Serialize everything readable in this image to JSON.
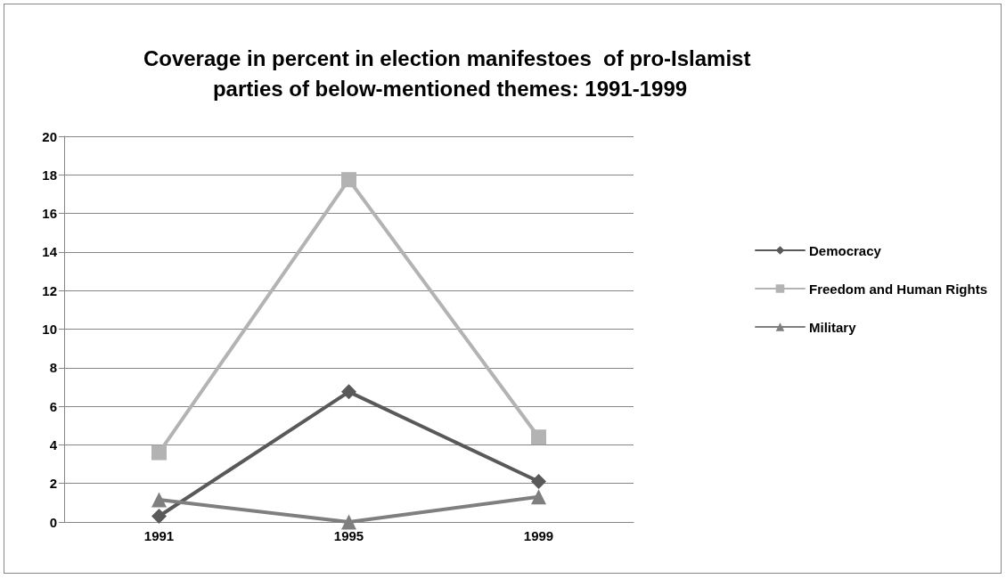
{
  "chart_data": {
    "type": "line",
    "title": "Coverage in percent in election manifestoes  of pro-Islamist parties of below-mentioned themes: 1991-1999",
    "categories": [
      "1991",
      "1995",
      "1999"
    ],
    "series": [
      {
        "name": "Democracy",
        "color": "#595959",
        "marker": "diamond",
        "values": [
          0.3,
          6.75,
          2.1
        ]
      },
      {
        "name": "Freedom and Human Rights",
        "color": "#b3b3b3",
        "marker": "square",
        "values": [
          3.6,
          17.75,
          4.4
        ]
      },
      {
        "name": "Military",
        "color": "#7f7f7f",
        "marker": "triangle",
        "values": [
          1.15,
          0,
          1.3
        ]
      }
    ],
    "ylim": [
      0,
      20
    ],
    "yticks": [
      0,
      2,
      4,
      6,
      8,
      10,
      12,
      14,
      16,
      18,
      20
    ],
    "grid": "y",
    "legend": "right",
    "line_style": "solid"
  }
}
